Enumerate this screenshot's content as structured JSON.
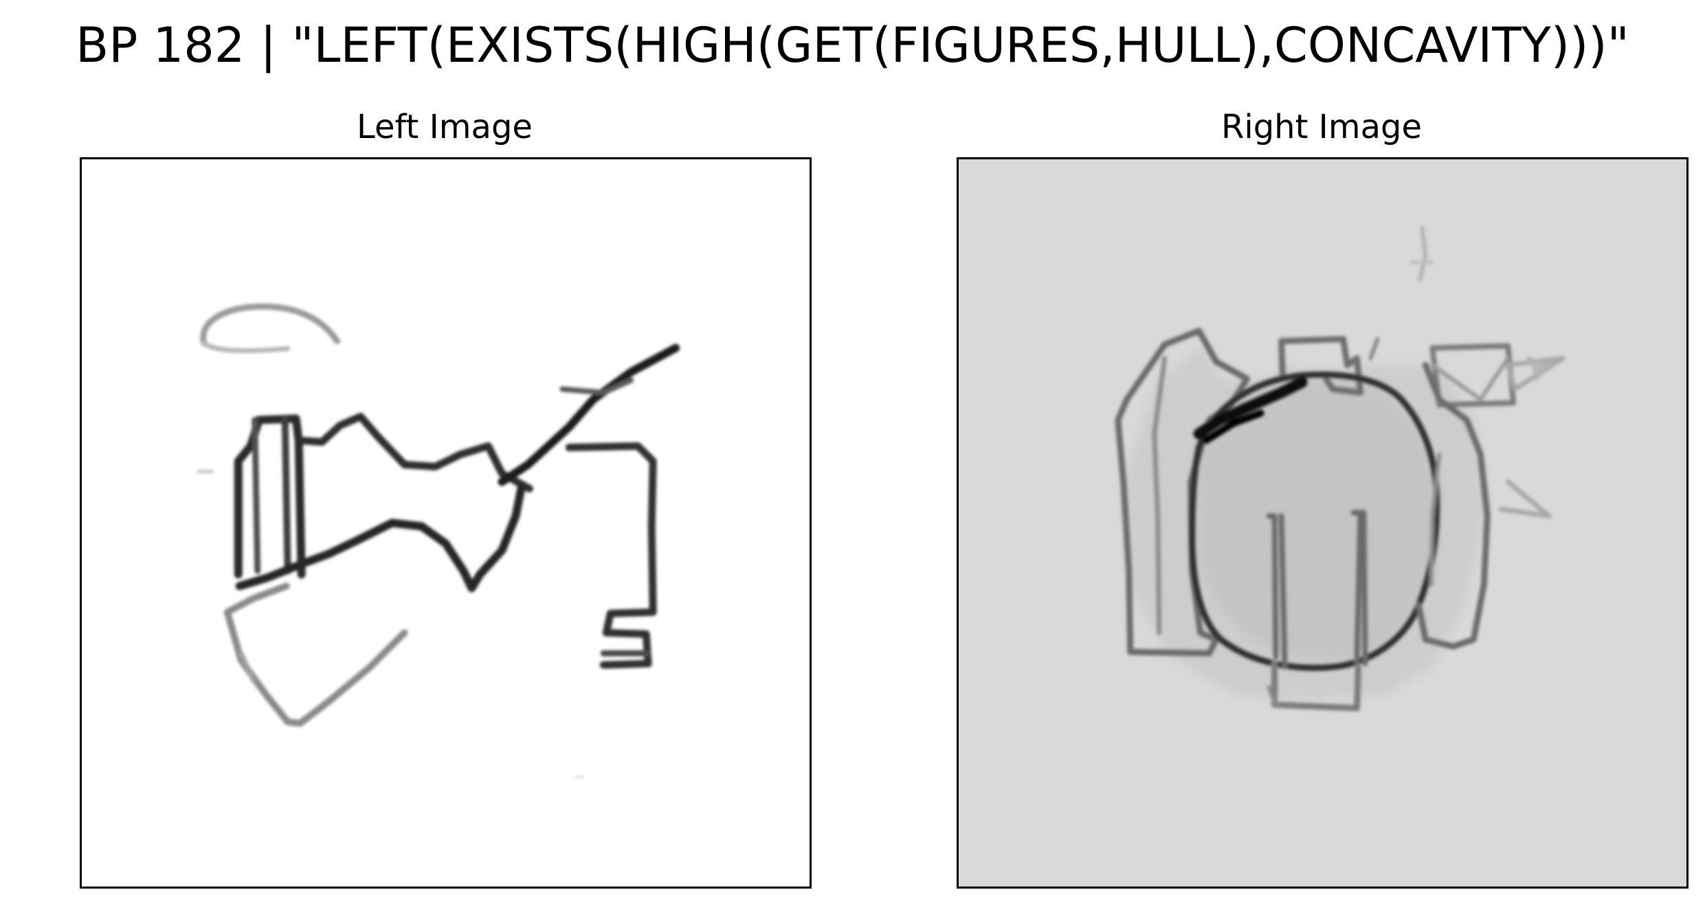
{
  "figure": {
    "title": "BP 182 | \"LEFT(EXISTS(HIGH(GET(FIGURES,HULL),CONCAVITY)))\""
  },
  "panels": [
    {
      "title": "Left Image",
      "background": "#ffffff"
    },
    {
      "title": "Right Image",
      "background": "#d9d9d9"
    }
  ]
}
